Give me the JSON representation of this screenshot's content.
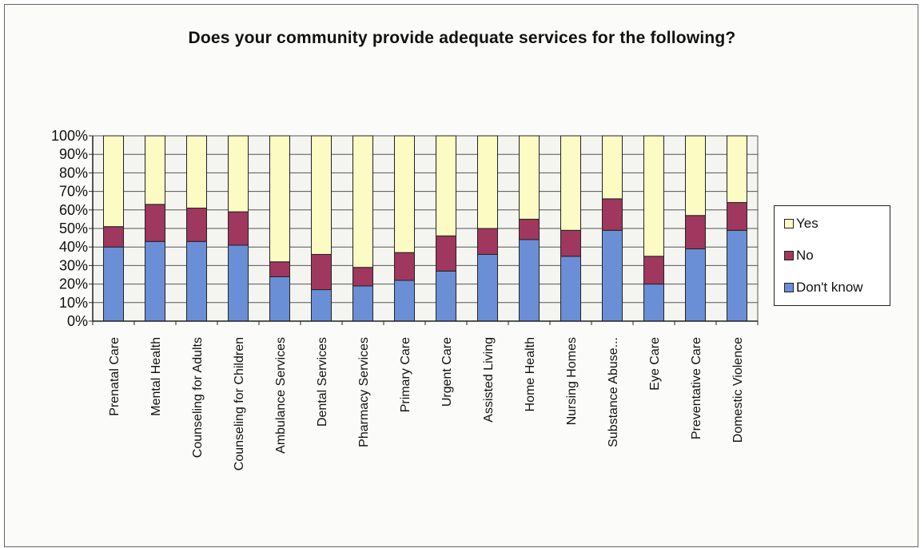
{
  "chart_data": {
    "type": "bar",
    "stacked": true,
    "percent": true,
    "title": "Does your community provide adequate services for the following?",
    "xlabel": "",
    "ylabel": "",
    "ylim": [
      0,
      100
    ],
    "yticks": [
      "0%",
      "10%",
      "20%",
      "30%",
      "40%",
      "50%",
      "60%",
      "70%",
      "80%",
      "90%",
      "100%"
    ],
    "grid": "horizontal",
    "legend_position": "right",
    "categories": [
      "Prenatal Care",
      "Mental Health",
      "Counseling for Adults",
      "Counseling for Children",
      "Ambulance Services",
      "Dental Services",
      "Pharmacy Services",
      "Primary Care",
      "Urgent Care",
      "Assisted Living",
      "Home Health",
      "Nursing Homes",
      "Substance Abuse...",
      "Eye Care",
      "Preventative Care",
      "Domestic Violence"
    ],
    "series": [
      {
        "name": "Don't know",
        "color": "#6b8fd6",
        "values": [
          40,
          43,
          43,
          41,
          24,
          17,
          19,
          22,
          27,
          36,
          44,
          35,
          49,
          20,
          39,
          49
        ]
      },
      {
        "name": "No",
        "color": "#a0375e",
        "values": [
          11,
          20,
          18,
          18,
          8,
          19,
          10,
          15,
          19,
          14,
          11,
          14,
          17,
          15,
          18,
          15
        ]
      },
      {
        "name": "Yes",
        "color": "#fdfbc4",
        "values": [
          49,
          37,
          39,
          41,
          68,
          64,
          71,
          63,
          54,
          50,
          45,
          51,
          34,
          65,
          43,
          36
        ]
      }
    ]
  },
  "legend": {
    "items": [
      {
        "label": "Yes",
        "color": "#fdfbc4"
      },
      {
        "label": "No",
        "color": "#a0375e"
      },
      {
        "label": "Don't know",
        "color": "#6b8fd6"
      }
    ]
  }
}
